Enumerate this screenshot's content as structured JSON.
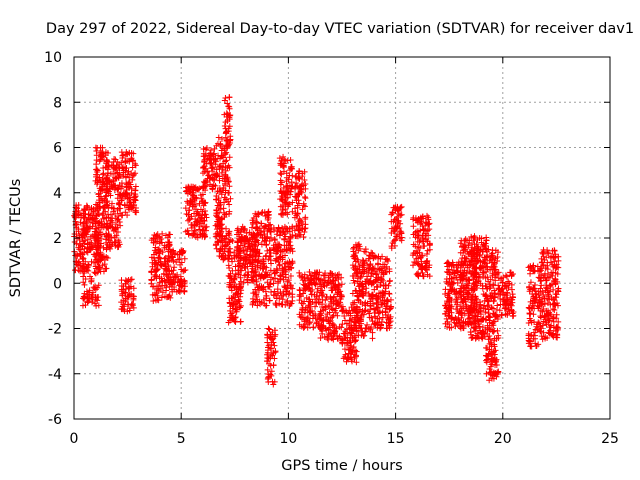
{
  "chart_data": {
    "type": "scatter",
    "title": "Day 297 of 2022, Sidereal Day-to-day VTEC variation (SDTVAR) for receiver dav1",
    "xlabel": "GPS time / hours",
    "ylabel": "SDTVAR / TECUs",
    "xlim": [
      0,
      25
    ],
    "ylim": [
      -6,
      10
    ],
    "xticks": [
      "0",
      "5",
      "10",
      "15",
      "20",
      "25"
    ],
    "yticks": [
      "-6",
      "-4",
      "-2",
      "0",
      "2",
      "4",
      "6",
      "8",
      "10"
    ],
    "grid": true,
    "marker": "plus",
    "color": "#ff0000",
    "series": [
      {
        "name": "dav1",
        "clusters": [
          {
            "x": [
              0.0,
              0.5
            ],
            "y": [
              0.5,
              3.5
            ]
          },
          {
            "x": [
              0.4,
              1.2
            ],
            "y": [
              -1.0,
              3.5
            ]
          },
          {
            "x": [
              1.0,
              1.6
            ],
            "y": [
              0.5,
              6.0
            ]
          },
          {
            "x": [
              1.5,
              2.2
            ],
            "y": [
              1.5,
              5.5
            ]
          },
          {
            "x": [
              2.2,
              2.9
            ],
            "y": [
              3.0,
              5.8
            ]
          },
          {
            "x": [
              2.2,
              2.8
            ],
            "y": [
              -1.3,
              0.2
            ]
          },
          {
            "x": [
              3.6,
              4.5
            ],
            "y": [
              -0.8,
              2.2
            ]
          },
          {
            "x": [
              4.5,
              5.2
            ],
            "y": [
              -0.4,
              1.5
            ]
          },
          {
            "x": [
              5.2,
              6.2
            ],
            "y": [
              2.0,
              4.3
            ]
          },
          {
            "x": [
              6.0,
              6.6
            ],
            "y": [
              4.0,
              6.0
            ]
          },
          {
            "x": [
              6.6,
              7.3
            ],
            "y": [
              1.0,
              6.5
            ]
          },
          {
            "x": [
              7.0,
              7.3
            ],
            "y": [
              6.0,
              8.3
            ]
          },
          {
            "x": [
              7.2,
              7.8
            ],
            "y": [
              -1.8,
              2.0
            ]
          },
          {
            "x": [
              7.6,
              8.5
            ],
            "y": [
              0.0,
              2.5
            ]
          },
          {
            "x": [
              8.3,
              9.2
            ],
            "y": [
              -1.0,
              3.2
            ]
          },
          {
            "x": [
              9.0,
              9.4
            ],
            "y": [
              -4.5,
              -2.0
            ]
          },
          {
            "x": [
              9.3,
              10.2
            ],
            "y": [
              -1.0,
              2.5
            ]
          },
          {
            "x": [
              9.6,
              10.2
            ],
            "y": [
              3.0,
              5.6
            ]
          },
          {
            "x": [
              10.3,
              10.8
            ],
            "y": [
              2.0,
              5.0
            ]
          },
          {
            "x": [
              10.5,
              11.5
            ],
            "y": [
              -2.0,
              0.5
            ]
          },
          {
            "x": [
              11.5,
              12.5
            ],
            "y": [
              -2.5,
              0.5
            ]
          },
          {
            "x": [
              12.5,
              13.2
            ],
            "y": [
              -3.5,
              -1.0
            ]
          },
          {
            "x": [
              13.0,
              14.0
            ],
            "y": [
              -2.5,
              1.8
            ]
          },
          {
            "x": [
              14.0,
              14.8
            ],
            "y": [
              -2.0,
              1.2
            ]
          },
          {
            "x": [
              14.8,
              15.3
            ],
            "y": [
              1.5,
              3.5
            ]
          },
          {
            "x": [
              15.8,
              16.6
            ],
            "y": [
              0.3,
              3.0
            ]
          },
          {
            "x": [
              17.3,
              18.2
            ],
            "y": [
              -2.0,
              1.0
            ]
          },
          {
            "x": [
              18.0,
              18.8
            ],
            "y": [
              -2.0,
              2.0
            ]
          },
          {
            "x": [
              18.5,
              19.3
            ],
            "y": [
              -2.5,
              2.2
            ]
          },
          {
            "x": [
              19.2,
              19.8
            ],
            "y": [
              -4.3,
              1.5
            ]
          },
          {
            "x": [
              19.8,
              20.5
            ],
            "y": [
              -1.5,
              0.5
            ]
          },
          {
            "x": [
              21.2,
              21.8
            ],
            "y": [
              -2.8,
              0.8
            ]
          },
          {
            "x": [
              21.8,
              22.6
            ],
            "y": [
              -2.5,
              1.5
            ]
          }
        ]
      }
    ]
  }
}
